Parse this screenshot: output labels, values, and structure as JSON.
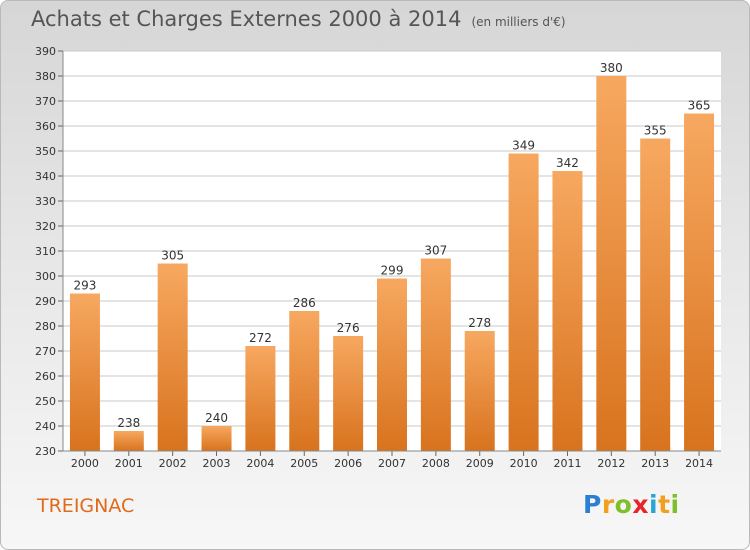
{
  "title": "Achats et Charges Externes 2000 à 2014",
  "unit_note": "(en milliers d'€)",
  "commune": "TREIGNAC",
  "logo": {
    "letters": [
      "P",
      "r",
      "o",
      "x",
      "i",
      "t",
      "i"
    ],
    "colors": [
      "#2a7fd4",
      "#f0a01e",
      "#7fbf2a",
      "#e8262a",
      "#2aa6d4",
      "#f0a01e",
      "#7fbf2a"
    ]
  },
  "colors": {
    "bar_light": "#f7a860",
    "bar_dark": "#d8731e",
    "grid": "#c8c8c8",
    "accent": "#e06a1a"
  },
  "chart_data": {
    "type": "bar",
    "title": "Achats et Charges Externes 2000 à 2014",
    "categories": [
      "2000",
      "2001",
      "2002",
      "2003",
      "2004",
      "2005",
      "2006",
      "2007",
      "2008",
      "2009",
      "2010",
      "2011",
      "2012",
      "2013",
      "2014"
    ],
    "values": [
      293,
      238,
      305,
      240,
      272,
      286,
      276,
      299,
      307,
      278,
      349,
      342,
      380,
      355,
      365
    ],
    "xlabel": "",
    "ylabel": "",
    "ylim": [
      230,
      390
    ],
    "yticks": [
      230,
      240,
      250,
      260,
      270,
      280,
      290,
      300,
      310,
      320,
      330,
      340,
      350,
      360,
      370,
      380,
      390
    ],
    "grid": true,
    "data_labels": true
  }
}
